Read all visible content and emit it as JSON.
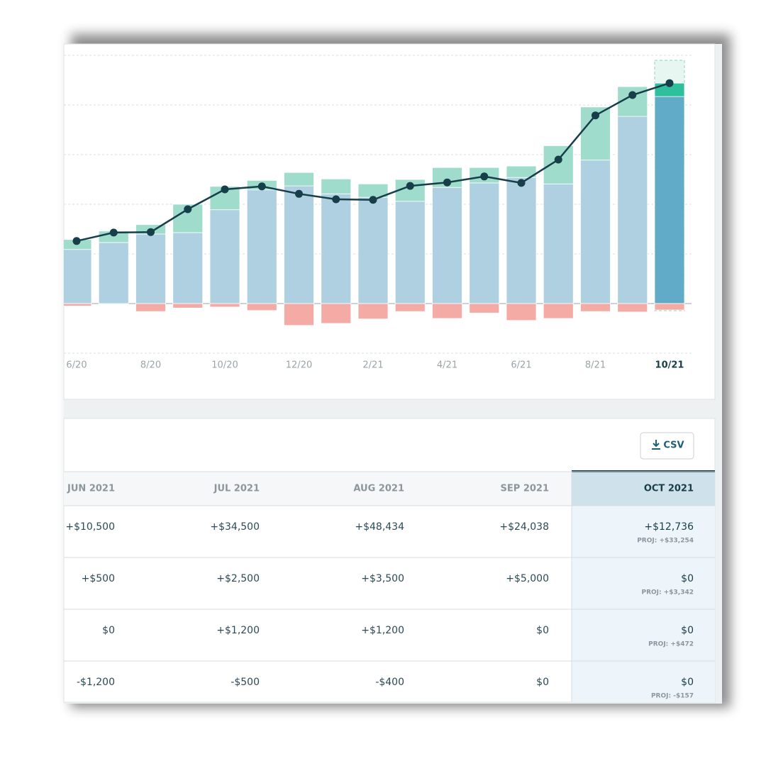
{
  "chart_data": {
    "type": "bar",
    "categories": [
      "6/20",
      null,
      "8/20",
      null,
      "10/20",
      null,
      "12/20",
      null,
      "2/21",
      null,
      "4/21",
      null,
      "6/21",
      null,
      "8/21",
      null,
      "10/21"
    ],
    "series": [
      {
        "color": "#aed0e0",
        "selected_color": "#62abc8",
        "values": [
          1.09,
          1.23,
          1.4,
          1.43,
          1.89,
          2.29,
          2.37,
          2.21,
          2.14,
          2.06,
          2.34,
          2.43,
          2.54,
          2.41,
          2.89,
          3.77,
          4.17
        ]
      },
      {
        "color": "#a0dccb",
        "selected_color": "#2fbf9c",
        "values": [
          0.2,
          0.23,
          0.19,
          0.57,
          0.47,
          0.19,
          0.27,
          0.3,
          0.27,
          0.44,
          0.4,
          0.31,
          0.23,
          0.77,
          1.07,
          0.6,
          0.27
        ]
      },
      {
        "color": "#f4aba6",
        "selected_color": "#f4aba6",
        "values": [
          -0.05,
          0,
          -0.16,
          -0.09,
          -0.07,
          -0.14,
          -0.44,
          -0.4,
          -0.31,
          -0.16,
          -0.3,
          -0.19,
          -0.34,
          -0.3,
          -0.16,
          -0.17,
          -0.13
        ]
      }
    ],
    "line": {
      "color": "#173f4a",
      "values": [
        1.26,
        1.43,
        1.44,
        1.9,
        2.3,
        2.36,
        2.21,
        2.1,
        2.09,
        2.37,
        2.44,
        2.56,
        2.43,
        2.9,
        3.79,
        4.2,
        4.44
      ]
    },
    "selected_index": 16,
    "ylim": [
      -1,
      5
    ],
    "ygrid": [
      -1,
      0,
      1,
      2,
      3,
      4,
      5
    ],
    "grid": true
  },
  "table": {
    "button": "CSV",
    "headers": [
      "JUN 2021",
      "JUL 2021",
      "AUG 2021",
      "SEP 2021",
      "OCT 2021"
    ],
    "rows": [
      {
        "cells": [
          "+$10,500",
          "+$34,500",
          "+$48,434",
          "+$24,038"
        ],
        "current": "+$12,736",
        "projection": "PROJ: +$33,254"
      },
      {
        "cells": [
          "+$500",
          "+$2,500",
          "+$3,500",
          "+$5,000"
        ],
        "current": "$0",
        "projection": "PROJ: +$3,342"
      },
      {
        "cells": [
          "$0",
          "+$1,200",
          "+$1,200",
          "$0"
        ],
        "current": "$0",
        "projection": "PROJ: +$472"
      },
      {
        "cells": [
          "-$1,200",
          "-$500",
          "-$400",
          "$0"
        ],
        "current": "$0",
        "projection": "PROJ: -$157"
      }
    ]
  }
}
